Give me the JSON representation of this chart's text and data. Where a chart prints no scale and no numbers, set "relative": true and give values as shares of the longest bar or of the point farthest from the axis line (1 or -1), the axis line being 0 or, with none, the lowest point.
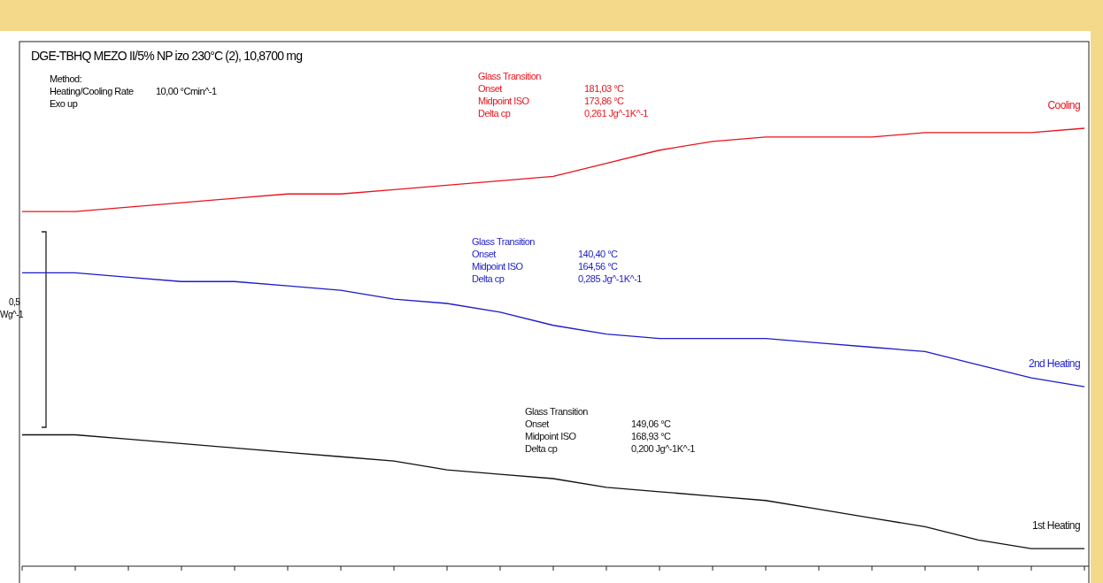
{
  "chart_data": {
    "type": "line",
    "relative": true,
    "title": "DGE-TBHQ MEZO II/5% NP izo 230°C (2), 10,8700 mg",
    "categories": [
      null,
      null,
      null,
      null,
      null,
      null,
      null,
      null,
      null,
      null,
      null,
      null,
      null,
      null,
      null,
      null,
      null,
      null,
      null,
      null,
      null
    ],
    "series": [
      {
        "name": "Cooling",
        "color": "#e8141c",
        "values": [
          0.81,
          0.81,
          0.82,
          0.83,
          0.84,
          0.85,
          0.85,
          0.86,
          0.87,
          0.88,
          0.89,
          0.92,
          0.95,
          0.97,
          0.98,
          0.98,
          0.98,
          0.99,
          0.99,
          0.99,
          1
        ]
      },
      {
        "name": "2nd Heating",
        "color": "#1c1cc8",
        "values": [
          0.67,
          0.67,
          0.66,
          0.65,
          0.65,
          0.64,
          0.63,
          0.61,
          0.6,
          0.58,
          0.55,
          0.53,
          0.52,
          0.52,
          0.52,
          0.51,
          0.5,
          0.49,
          0.46,
          0.43,
          0.41
        ]
      },
      {
        "name": "1st Heating",
        "color": "#111111",
        "values": [
          0.3,
          0.3,
          0.29,
          0.28,
          0.27,
          0.26,
          0.25,
          0.24,
          0.22,
          0.21,
          0.2,
          0.18,
          0.17,
          0.16,
          0.15,
          0.13,
          0.11,
          0.09,
          0.06,
          0.04,
          0.04
        ]
      }
    ],
    "annotations": [
      "Method:\nHeating/Cooling Rate\t10,00 °Cmin^-1\nExo up",
      "Glass Transition\nOnset\t181,03 °C\nMidpoint ISO\t173,86 °C\nDelta cp\t0,261 Jg^-1K^-1",
      "Glass Transition\nOnset\t140,40 °C\nMidpoint ISO\t164,56 °C\nDelta cp\t0,285 Jg^-1K^-1",
      "Glass Transition\nOnset\t149,06 °C\nMidpoint ISO\t168,93 °C\nDelta cp\t0,200 Jg^-1K^-1",
      "0,5\nWg^-1"
    ],
    "legend": false,
    "line_style": "solid",
    "marker": "none"
  }
}
